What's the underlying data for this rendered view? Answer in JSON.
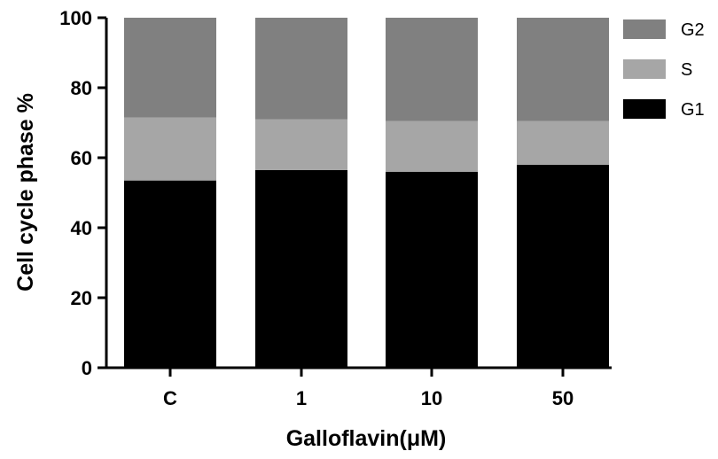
{
  "chart_data": {
    "type": "bar",
    "stacked": true,
    "categories": [
      "C",
      "1",
      "10",
      "50"
    ],
    "series": [
      {
        "name": "G1",
        "values": [
          53.5,
          56.5,
          56.0,
          58.0
        ],
        "color": "#000000"
      },
      {
        "name": "S",
        "values": [
          18.0,
          14.5,
          14.5,
          12.5
        ],
        "color": "#a6a6a6"
      },
      {
        "name": "G2",
        "values": [
          28.5,
          29.0,
          29.5,
          29.5
        ],
        "color": "#808080"
      }
    ],
    "legend_order": [
      "G2",
      "S",
      "G1"
    ],
    "yticks": [
      "0",
      "20",
      "40",
      "60",
      "80",
      "100"
    ],
    "ylim": [
      0,
      100
    ],
    "xlabel": "Galloflavin(μM)",
    "ylabel": "Cell cycle phase %",
    "grid": false,
    "legend_position": "top-right"
  }
}
